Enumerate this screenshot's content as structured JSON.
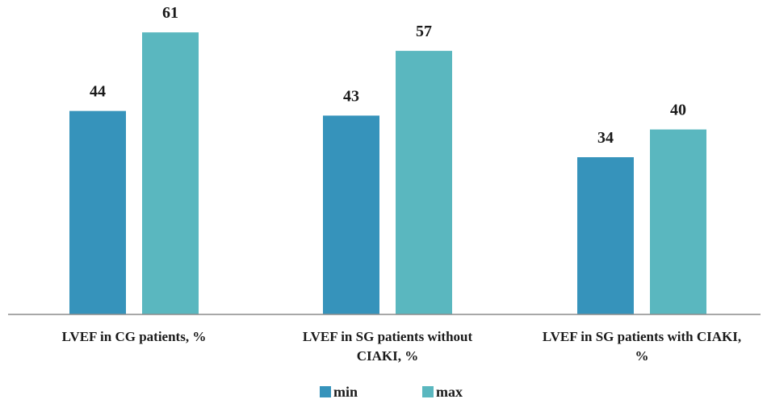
{
  "chart_data": {
    "type": "bar",
    "categories": [
      [
        "LVEF in CG patients, %"
      ],
      [
        "LVEF in SG patients without",
        "CIAKI, %"
      ],
      [
        "LVEF in SG patients with CIAKI,",
        "%"
      ]
    ],
    "series": [
      {
        "name": "min",
        "values": [
          44,
          43,
          34
        ],
        "color": "#3693bb"
      },
      {
        "name": "max",
        "values": [
          61,
          57,
          40
        ],
        "color": "#5ab7bf"
      }
    ],
    "ylim": [
      0,
      68
    ],
    "grid": false,
    "legend_position": "bottom-center",
    "axis_color": "#8c8c8c"
  }
}
